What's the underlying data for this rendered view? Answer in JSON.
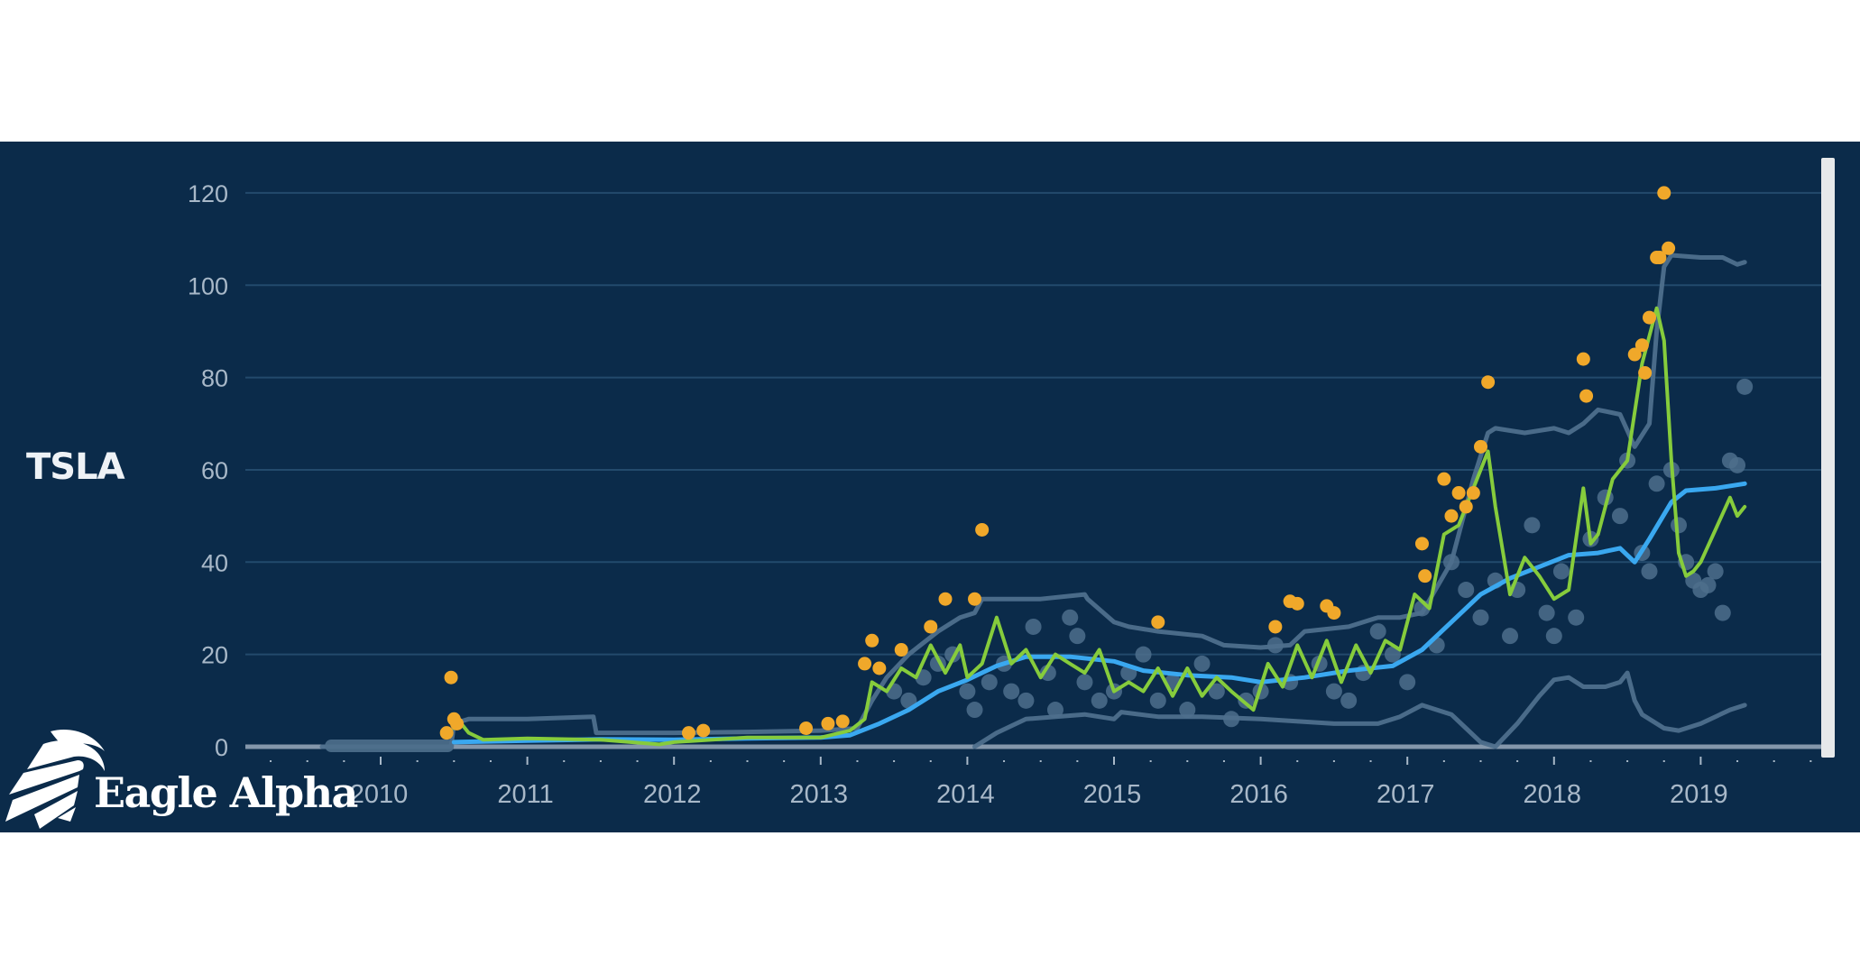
{
  "ticker": "TSLA",
  "brand": {
    "name": "Eagle Alpha",
    "icon": "eagle-head-icon"
  },
  "colors": {
    "background": "#0b2b4a",
    "gridline": "#234a6c",
    "axis": "#8497ab",
    "tick_label": "#a8b8c8",
    "long_ma": "#3aa8f0",
    "short_ma": "#86cc3c",
    "band": "#4e6f8c",
    "scatter": "#4e6f8c",
    "outlier": "#f0a82a"
  },
  "chart_data": {
    "type": "line",
    "title": "TSLA",
    "xlabel": "",
    "ylabel": "",
    "ylim": [
      0,
      120
    ],
    "yticks": [
      0,
      20,
      40,
      60,
      80,
      100,
      120
    ],
    "xticks": [
      "2010",
      "2011",
      "2012",
      "2013",
      "2014",
      "2015",
      "2016",
      "2017",
      "2018",
      "2019"
    ],
    "xlim": [
      2009.6,
      2019.75
    ],
    "grid": true,
    "legend": null,
    "series": [
      {
        "name": "upper-band",
        "color": "#4e6f8c",
        "x": [
          2009.6,
          2010.48,
          2010.5,
          2010.6,
          2011.0,
          2011.45,
          2011.47,
          2012.0,
          2012.5,
          2013.0,
          2013.25,
          2013.35,
          2013.45,
          2013.6,
          2013.8,
          2013.95,
          2014.05,
          2014.1,
          2014.5,
          2014.8,
          2014.82,
          2015.0,
          2015.1,
          2015.3,
          2015.6,
          2015.75,
          2016.0,
          2016.2,
          2016.3,
          2016.6,
          2016.8,
          2016.95,
          2017.1,
          2017.3,
          2017.45,
          2017.55,
          2017.6,
          2017.8,
          2018.0,
          2018.1,
          2018.2,
          2018.3,
          2018.45,
          2018.55,
          2018.65,
          2018.7,
          2018.75,
          2018.8,
          2019.0,
          2019.15,
          2019.25,
          2019.3
        ],
        "values": [
          0,
          0,
          5,
          6,
          6,
          6.5,
          3,
          3,
          3.2,
          3.5,
          4,
          10,
          15,
          20,
          25,
          28,
          29,
          32,
          32,
          33,
          32,
          27,
          26,
          25,
          24,
          22,
          21.5,
          22,
          25,
          26,
          28,
          28,
          29,
          40,
          58,
          68,
          69,
          68,
          69,
          68,
          70,
          73,
          72,
          65,
          70,
          90,
          104,
          106.5,
          106,
          106,
          104.5,
          105
        ]
      },
      {
        "name": "lower-band",
        "color": "#4e6f8c",
        "x": [
          2014.05,
          2014.2,
          2014.4,
          2014.8,
          2015.0,
          2015.05,
          2015.3,
          2015.6,
          2016.0,
          2016.5,
          2016.8,
          2016.95,
          2017.1,
          2017.3,
          2017.4,
          2017.5,
          2017.6,
          2017.75,
          2017.9,
          2018.0,
          2018.1,
          2018.2,
          2018.35,
          2018.45,
          2018.5,
          2018.55,
          2018.6,
          2018.75,
          2018.85,
          2019.0,
          2019.2,
          2019.3
        ],
        "values": [
          0,
          3,
          6,
          7,
          6,
          7.5,
          6.5,
          6.5,
          6,
          5,
          5,
          6.5,
          9,
          7,
          4,
          1,
          0,
          5,
          11,
          14.5,
          15,
          13,
          13,
          14,
          16,
          10,
          7,
          4,
          3.5,
          5,
          8,
          9
        ]
      },
      {
        "name": "long-moving-average",
        "color": "#3aa8f0",
        "x": [
          2010.5,
          2011.0,
          2011.5,
          2012.0,
          2012.5,
          2013.0,
          2013.2,
          2013.4,
          2013.6,
          2013.8,
          2014.0,
          2014.2,
          2014.4,
          2014.7,
          2015.0,
          2015.2,
          2015.5,
          2015.8,
          2016.0,
          2016.3,
          2016.6,
          2016.9,
          2017.1,
          2017.3,
          2017.5,
          2017.7,
          2017.9,
          2018.1,
          2018.3,
          2018.45,
          2018.55,
          2018.65,
          2018.8,
          2018.9,
          2019.1,
          2019.3
        ],
        "values": [
          1,
          1.3,
          1.6,
          1.5,
          1.8,
          2,
          2.5,
          5,
          8,
          12,
          14.5,
          17.5,
          19.5,
          19.5,
          18.5,
          16.5,
          15.5,
          15,
          14,
          15,
          16.5,
          17.5,
          21,
          27,
          33,
          36.5,
          39,
          41.5,
          42,
          43,
          40,
          45,
          53,
          55.5,
          56,
          57
        ]
      },
      {
        "name": "short-moving-average",
        "color": "#86cc3c",
        "x": [
          2010.5,
          2010.55,
          2010.6,
          2010.7,
          2011.0,
          2011.5,
          2011.9,
          2012.0,
          2012.5,
          2013.0,
          2013.2,
          2013.3,
          2013.35,
          2013.45,
          2013.55,
          2013.65,
          2013.75,
          2013.85,
          2013.95,
          2014.0,
          2014.1,
          2014.2,
          2014.3,
          2014.4,
          2014.5,
          2014.6,
          2014.7,
          2014.8,
          2014.9,
          2015.0,
          2015.1,
          2015.2,
          2015.3,
          2015.4,
          2015.5,
          2015.6,
          2015.7,
          2015.8,
          2015.95,
          2016.05,
          2016.15,
          2016.25,
          2016.35,
          2016.45,
          2016.55,
          2016.65,
          2016.75,
          2016.85,
          2016.95,
          2017.05,
          2017.15,
          2017.25,
          2017.35,
          2017.45,
          2017.55,
          2017.6,
          2017.7,
          2017.8,
          2017.9,
          2018.0,
          2018.1,
          2018.2,
          2018.25,
          2018.3,
          2018.4,
          2018.5,
          2018.6,
          2018.7,
          2018.75,
          2018.8,
          2018.85,
          2018.9,
          2018.95,
          2019.0,
          2019.1,
          2019.2,
          2019.25,
          2019.3
        ],
        "values": [
          4,
          5,
          3,
          1.5,
          1.8,
          1.5,
          0.5,
          1,
          2,
          2,
          3.5,
          6,
          14,
          12,
          17,
          15,
          22,
          16,
          22,
          15,
          18,
          28,
          18,
          21,
          15,
          20,
          18,
          16,
          21,
          12,
          14,
          12,
          17,
          11,
          17,
          11,
          15,
          12,
          8,
          18,
          13,
          22,
          15,
          23,
          14,
          22,
          16,
          23,
          21,
          33,
          30,
          46,
          48,
          56,
          64,
          52,
          33,
          41,
          37,
          32,
          34,
          56,
          44,
          46,
          58,
          62,
          83,
          95,
          88,
          62,
          42,
          37,
          38,
          40,
          47,
          54,
          50,
          52
        ]
      },
      {
        "name": "outliers",
        "type": "scatter",
        "color": "#f0a82a",
        "x": [
          2010.45,
          2010.5,
          2010.48,
          2010.52,
          2012.1,
          2012.2,
          2012.9,
          2013.05,
          2013.15,
          2013.3,
          2013.35,
          2013.4,
          2013.55,
          2013.75,
          2013.85,
          2014.05,
          2014.1,
          2015.3,
          2016.1,
          2016.2,
          2016.25,
          2016.45,
          2016.5,
          2017.1,
          2017.12,
          2017.25,
          2017.3,
          2017.35,
          2017.4,
          2017.45,
          2017.5,
          2017.55,
          2018.2,
          2018.22,
          2018.55,
          2018.6,
          2018.62,
          2018.65,
          2018.7,
          2018.72,
          2018.75,
          2018.78
        ],
        "values": [
          3,
          6,
          15,
          5,
          3,
          3.5,
          4,
          5,
          5.5,
          18,
          23,
          17,
          21,
          26,
          32,
          32,
          47,
          27,
          26,
          31.5,
          31,
          30.5,
          29,
          44,
          37,
          58,
          50,
          55,
          52,
          55,
          65,
          79,
          84,
          76,
          85,
          87,
          81,
          93,
          106,
          106,
          120,
          108
        ]
      },
      {
        "name": "observations",
        "type": "scatter",
        "color": "#4e6f8c",
        "x": [
          2013.5,
          2013.6,
          2013.7,
          2013.8,
          2013.9,
          2014.0,
          2014.05,
          2014.15,
          2014.25,
          2014.3,
          2014.4,
          2014.45,
          2014.55,
          2014.6,
          2014.7,
          2014.75,
          2014.8,
          2014.9,
          2015.0,
          2015.1,
          2015.2,
          2015.3,
          2015.4,
          2015.5,
          2015.6,
          2015.7,
          2015.8,
          2015.9,
          2016.0,
          2016.1,
          2016.2,
          2016.4,
          2016.5,
          2016.6,
          2016.7,
          2016.8,
          2016.9,
          2017.0,
          2017.1,
          2017.2,
          2017.3,
          2017.4,
          2017.5,
          2017.6,
          2017.7,
          2017.75,
          2017.85,
          2017.95,
          2018.0,
          2018.05,
          2018.15,
          2018.25,
          2018.35,
          2018.45,
          2018.5,
          2018.6,
          2018.65,
          2018.7,
          2018.8,
          2018.85,
          2018.9,
          2018.95,
          2019.0,
          2019.05,
          2019.1,
          2019.15,
          2019.2,
          2019.25,
          2019.3
        ],
        "values": [
          12,
          10,
          15,
          18,
          20,
          12,
          8,
          14,
          18,
          12,
          10,
          26,
          16,
          8,
          28,
          24,
          14,
          10,
          12,
          16,
          20,
          10,
          14,
          8,
          18,
          12,
          6,
          10,
          12,
          22,
          14,
          18,
          12,
          10,
          16,
          25,
          20,
          14,
          30,
          22,
          40,
          34,
          28,
          36,
          24,
          34,
          48,
          29,
          24,
          38,
          28,
          45,
          54,
          50,
          62,
          42,
          38,
          57,
          60,
          48,
          40,
          36,
          34,
          35,
          38,
          29,
          62,
          61,
          78
        ]
      }
    ]
  }
}
